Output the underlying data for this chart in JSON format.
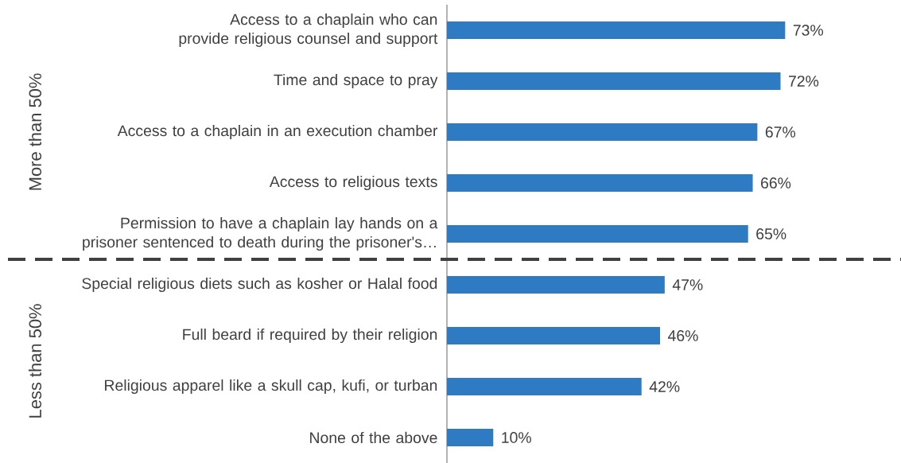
{
  "chart_data": {
    "type": "bar",
    "orientation": "horizontal",
    "categories": [
      "Access to a chaplain who can provide religious counsel and support",
      "Time and space to pray",
      "Access to a chaplain in an execution chamber",
      "Access to religious texts",
      "Permission to have a chaplain lay hands on a prisoner sentenced to death during the prisoner's…",
      "Special religious diets such as kosher or Halal food",
      "Full beard if required by their religion",
      "Religious apparel like a skull cap, kufi, or turban",
      "None of the above"
    ],
    "values": [
      73,
      72,
      67,
      66,
      65,
      47,
      46,
      42,
      10
    ],
    "value_labels": [
      "73%",
      "72%",
      "67%",
      "66%",
      "65%",
      "47%",
      "46%",
      "42%",
      "10%"
    ],
    "color": "#2e7bc4",
    "xlim": [
      0,
      98
    ],
    "tick_labels": "y",
    "annotations": [
      "More than 50%",
      "Less than 50%"
    ]
  }
}
